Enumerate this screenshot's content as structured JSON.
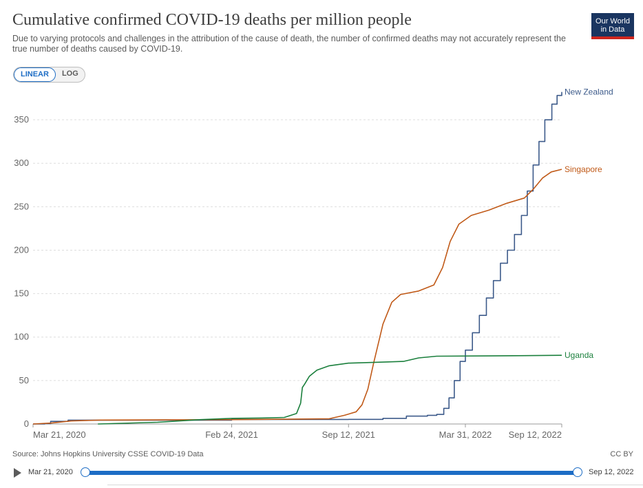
{
  "header": {
    "title": "Cumulative confirmed COVID-19 deaths per million people",
    "subtitle": "Due to varying protocols and challenges in the attribution of the cause of death, the number of confirmed deaths may not accurately represent the true number of deaths caused by COVID-19.",
    "logo_line1": "Our World",
    "logo_line2": "in Data"
  },
  "scale_toggle": {
    "linear_label": "LINEAR",
    "log_label": "LOG",
    "selected": "LINEAR"
  },
  "footer": {
    "source": "Source: Johns Hopkins University CSSE COVID-19 Data",
    "license": "CC BY"
  },
  "timeline": {
    "start_label": "Mar 21, 2020",
    "end_label": "Sep 12, 2022",
    "start_fraction": 0,
    "end_fraction": 1
  },
  "colors": {
    "accent": "#1d6dc5",
    "new_zealand": "#3c5a8a",
    "singapore": "#c05917",
    "uganda": "#1a7f3c",
    "grid": "#dddddd"
  },
  "chart_data": {
    "type": "line",
    "title": "Cumulative confirmed COVID-19 deaths per million people",
    "xlabel": "",
    "ylabel": "",
    "x_start": "2020-03-21",
    "x_end": "2022-09-12",
    "xticks": [
      {
        "date": "2020-03-21",
        "label": "Mar 21, 2020"
      },
      {
        "date": "2021-02-24",
        "label": "Feb 24, 2021"
      },
      {
        "date": "2021-09-12",
        "label": "Sep 12, 2021"
      },
      {
        "date": "2022-03-31",
        "label": "Mar 31, 2022"
      },
      {
        "date": "2022-09-12",
        "label": "Sep 12, 2022"
      }
    ],
    "yticks": [
      0,
      50,
      100,
      150,
      200,
      250,
      300,
      350
    ],
    "ylim": [
      0,
      380
    ],
    "grid": true,
    "legend": "end-of-line labels",
    "series": [
      {
        "name": "New Zealand",
        "color": "#3c5a8a",
        "step": true,
        "points": [
          [
            "2020-03-21",
            0
          ],
          [
            "2020-04-10",
            0.5
          ],
          [
            "2020-04-20",
            3
          ],
          [
            "2020-05-20",
            4.4
          ],
          [
            "2021-02-24",
            5.2
          ],
          [
            "2021-09-12",
            5.3
          ],
          [
            "2021-11-10",
            6.5
          ],
          [
            "2021-12-20",
            9
          ],
          [
            "2022-01-25",
            10
          ],
          [
            "2022-02-10",
            11
          ],
          [
            "2022-02-22",
            18
          ],
          [
            "2022-03-03",
            30
          ],
          [
            "2022-03-12",
            50
          ],
          [
            "2022-03-22",
            72
          ],
          [
            "2022-03-31",
            85
          ],
          [
            "2022-04-12",
            105
          ],
          [
            "2022-04-24",
            125
          ],
          [
            "2022-05-06",
            145
          ],
          [
            "2022-05-18",
            165
          ],
          [
            "2022-05-30",
            185
          ],
          [
            "2022-06-11",
            200
          ],
          [
            "2022-06-23",
            218
          ],
          [
            "2022-07-05",
            240
          ],
          [
            "2022-07-15",
            268
          ],
          [
            "2022-07-25",
            298
          ],
          [
            "2022-08-04",
            325
          ],
          [
            "2022-08-14",
            350
          ],
          [
            "2022-08-26",
            368
          ],
          [
            "2022-09-04",
            378
          ],
          [
            "2022-09-12",
            382
          ]
        ]
      },
      {
        "name": "Singapore",
        "color": "#c05917",
        "step": false,
        "points": [
          [
            "2020-03-21",
            0
          ],
          [
            "2020-04-20",
            1
          ],
          [
            "2020-05-25",
            3.5
          ],
          [
            "2020-07-15",
            4.5
          ],
          [
            "2021-02-24",
            5
          ],
          [
            "2021-08-10",
            6
          ],
          [
            "2021-09-05",
            10
          ],
          [
            "2021-09-25",
            14
          ],
          [
            "2021-10-05",
            22
          ],
          [
            "2021-10-15",
            40
          ],
          [
            "2021-10-25",
            70
          ],
          [
            "2021-11-10",
            115
          ],
          [
            "2021-11-25",
            140
          ],
          [
            "2021-12-10",
            149
          ],
          [
            "2022-01-10",
            153
          ],
          [
            "2022-02-05",
            160
          ],
          [
            "2022-02-20",
            180
          ],
          [
            "2022-03-05",
            210
          ],
          [
            "2022-03-20",
            230
          ],
          [
            "2022-04-10",
            240
          ],
          [
            "2022-05-10",
            246
          ],
          [
            "2022-06-10",
            254
          ],
          [
            "2022-07-10",
            260
          ],
          [
            "2022-07-25",
            270
          ],
          [
            "2022-08-10",
            283
          ],
          [
            "2022-08-25",
            290
          ],
          [
            "2022-09-12",
            293
          ]
        ]
      },
      {
        "name": "Uganda",
        "color": "#1a7f3c",
        "step": false,
        "points": [
          [
            "2020-07-10",
            0
          ],
          [
            "2020-10-20",
            2
          ],
          [
            "2021-01-01",
            5
          ],
          [
            "2021-02-24",
            6.5
          ],
          [
            "2021-04-25",
            7
          ],
          [
            "2021-05-25",
            7.5
          ],
          [
            "2021-06-15",
            12
          ],
          [
            "2021-06-22",
            24
          ],
          [
            "2021-06-25",
            42
          ],
          [
            "2021-06-29",
            46
          ],
          [
            "2021-07-07",
            55
          ],
          [
            "2021-07-20",
            62
          ],
          [
            "2021-08-10",
            67
          ],
          [
            "2021-09-12",
            70
          ],
          [
            "2021-11-01",
            71
          ],
          [
            "2021-12-15",
            72
          ],
          [
            "2022-01-10",
            76
          ],
          [
            "2022-02-10",
            78
          ],
          [
            "2022-05-10",
            78.3
          ],
          [
            "2022-09-12",
            79
          ]
        ]
      }
    ]
  }
}
